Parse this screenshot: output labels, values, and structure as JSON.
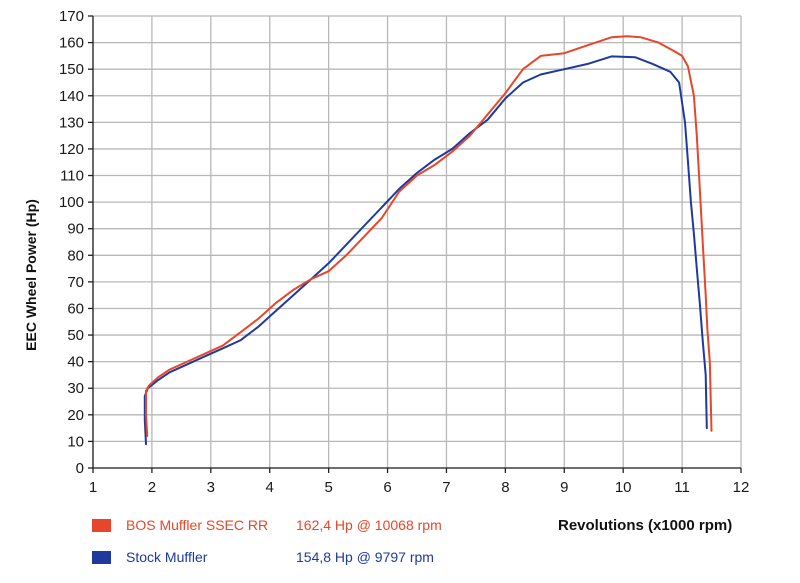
{
  "chart_data": {
    "type": "line",
    "xlabel": "Revolutions (x1000 rpm)",
    "ylabel": "EEC Wheel Power (Hp)",
    "xlim": [
      1,
      12
    ],
    "ylim": [
      0,
      170
    ],
    "x_ticks": [
      1,
      2,
      3,
      4,
      5,
      6,
      7,
      8,
      9,
      10,
      11,
      12
    ],
    "y_ticks": [
      0,
      10,
      20,
      30,
      40,
      50,
      60,
      70,
      80,
      90,
      100,
      110,
      120,
      130,
      140,
      150,
      160,
      170
    ],
    "grid": true,
    "legend_position": "bottom-left",
    "series": [
      {
        "name": "BOS Muffler SSEC RR",
        "peak_label": "162,4 Hp @ 10068 rpm",
        "color": "#e8462a",
        "x": [
          1.92,
          1.9,
          1.9,
          1.95,
          2.1,
          2.3,
          2.6,
          2.9,
          3.2,
          3.5,
          3.8,
          4.1,
          4.4,
          4.7,
          5.0,
          5.3,
          5.6,
          5.9,
          6.2,
          6.5,
          6.8,
          7.1,
          7.4,
          7.7,
          8.0,
          8.3,
          8.6,
          9.0,
          9.4,
          9.8,
          10.07,
          10.3,
          10.6,
          10.85,
          11.0,
          11.1,
          11.2,
          11.25,
          11.3,
          11.35,
          11.4,
          11.43,
          11.47,
          11.5
        ],
        "values": [
          12,
          20,
          29,
          31,
          34,
          37,
          40,
          43,
          46,
          51,
          56,
          62,
          67,
          71,
          74,
          80,
          87,
          94,
          104,
          110,
          114,
          119,
          125,
          133,
          141,
          150,
          155,
          156,
          159,
          162,
          162.4,
          162,
          160,
          157,
          155,
          151,
          140,
          125,
          105,
          85,
          65,
          52,
          40,
          14
        ]
      },
      {
        "name": "Stock Muffler",
        "peak_label": "154,8 Hp @ 9797 rpm",
        "color": "#1e3a9e",
        "x": [
          1.9,
          1.88,
          1.88,
          1.93,
          2.1,
          2.3,
          2.6,
          2.9,
          3.2,
          3.5,
          3.8,
          4.1,
          4.4,
          4.7,
          5.0,
          5.3,
          5.6,
          5.9,
          6.2,
          6.5,
          6.8,
          7.1,
          7.4,
          7.7,
          8.0,
          8.3,
          8.6,
          9.0,
          9.4,
          9.8,
          10.2,
          10.5,
          10.8,
          10.95,
          11.05,
          11.1,
          11.15,
          11.2,
          11.25,
          11.3,
          11.35,
          11.4,
          11.42
        ],
        "values": [
          9,
          18,
          27,
          30,
          33,
          36,
          39,
          42,
          45,
          48,
          53,
          59,
          65,
          71,
          77,
          84,
          91,
          98,
          105,
          111,
          116,
          120,
          126,
          131,
          139,
          145,
          148,
          150,
          152,
          154.8,
          154.5,
          152,
          149,
          145,
          130,
          115,
          100,
          88,
          75,
          62,
          48,
          35,
          15
        ]
      }
    ]
  }
}
